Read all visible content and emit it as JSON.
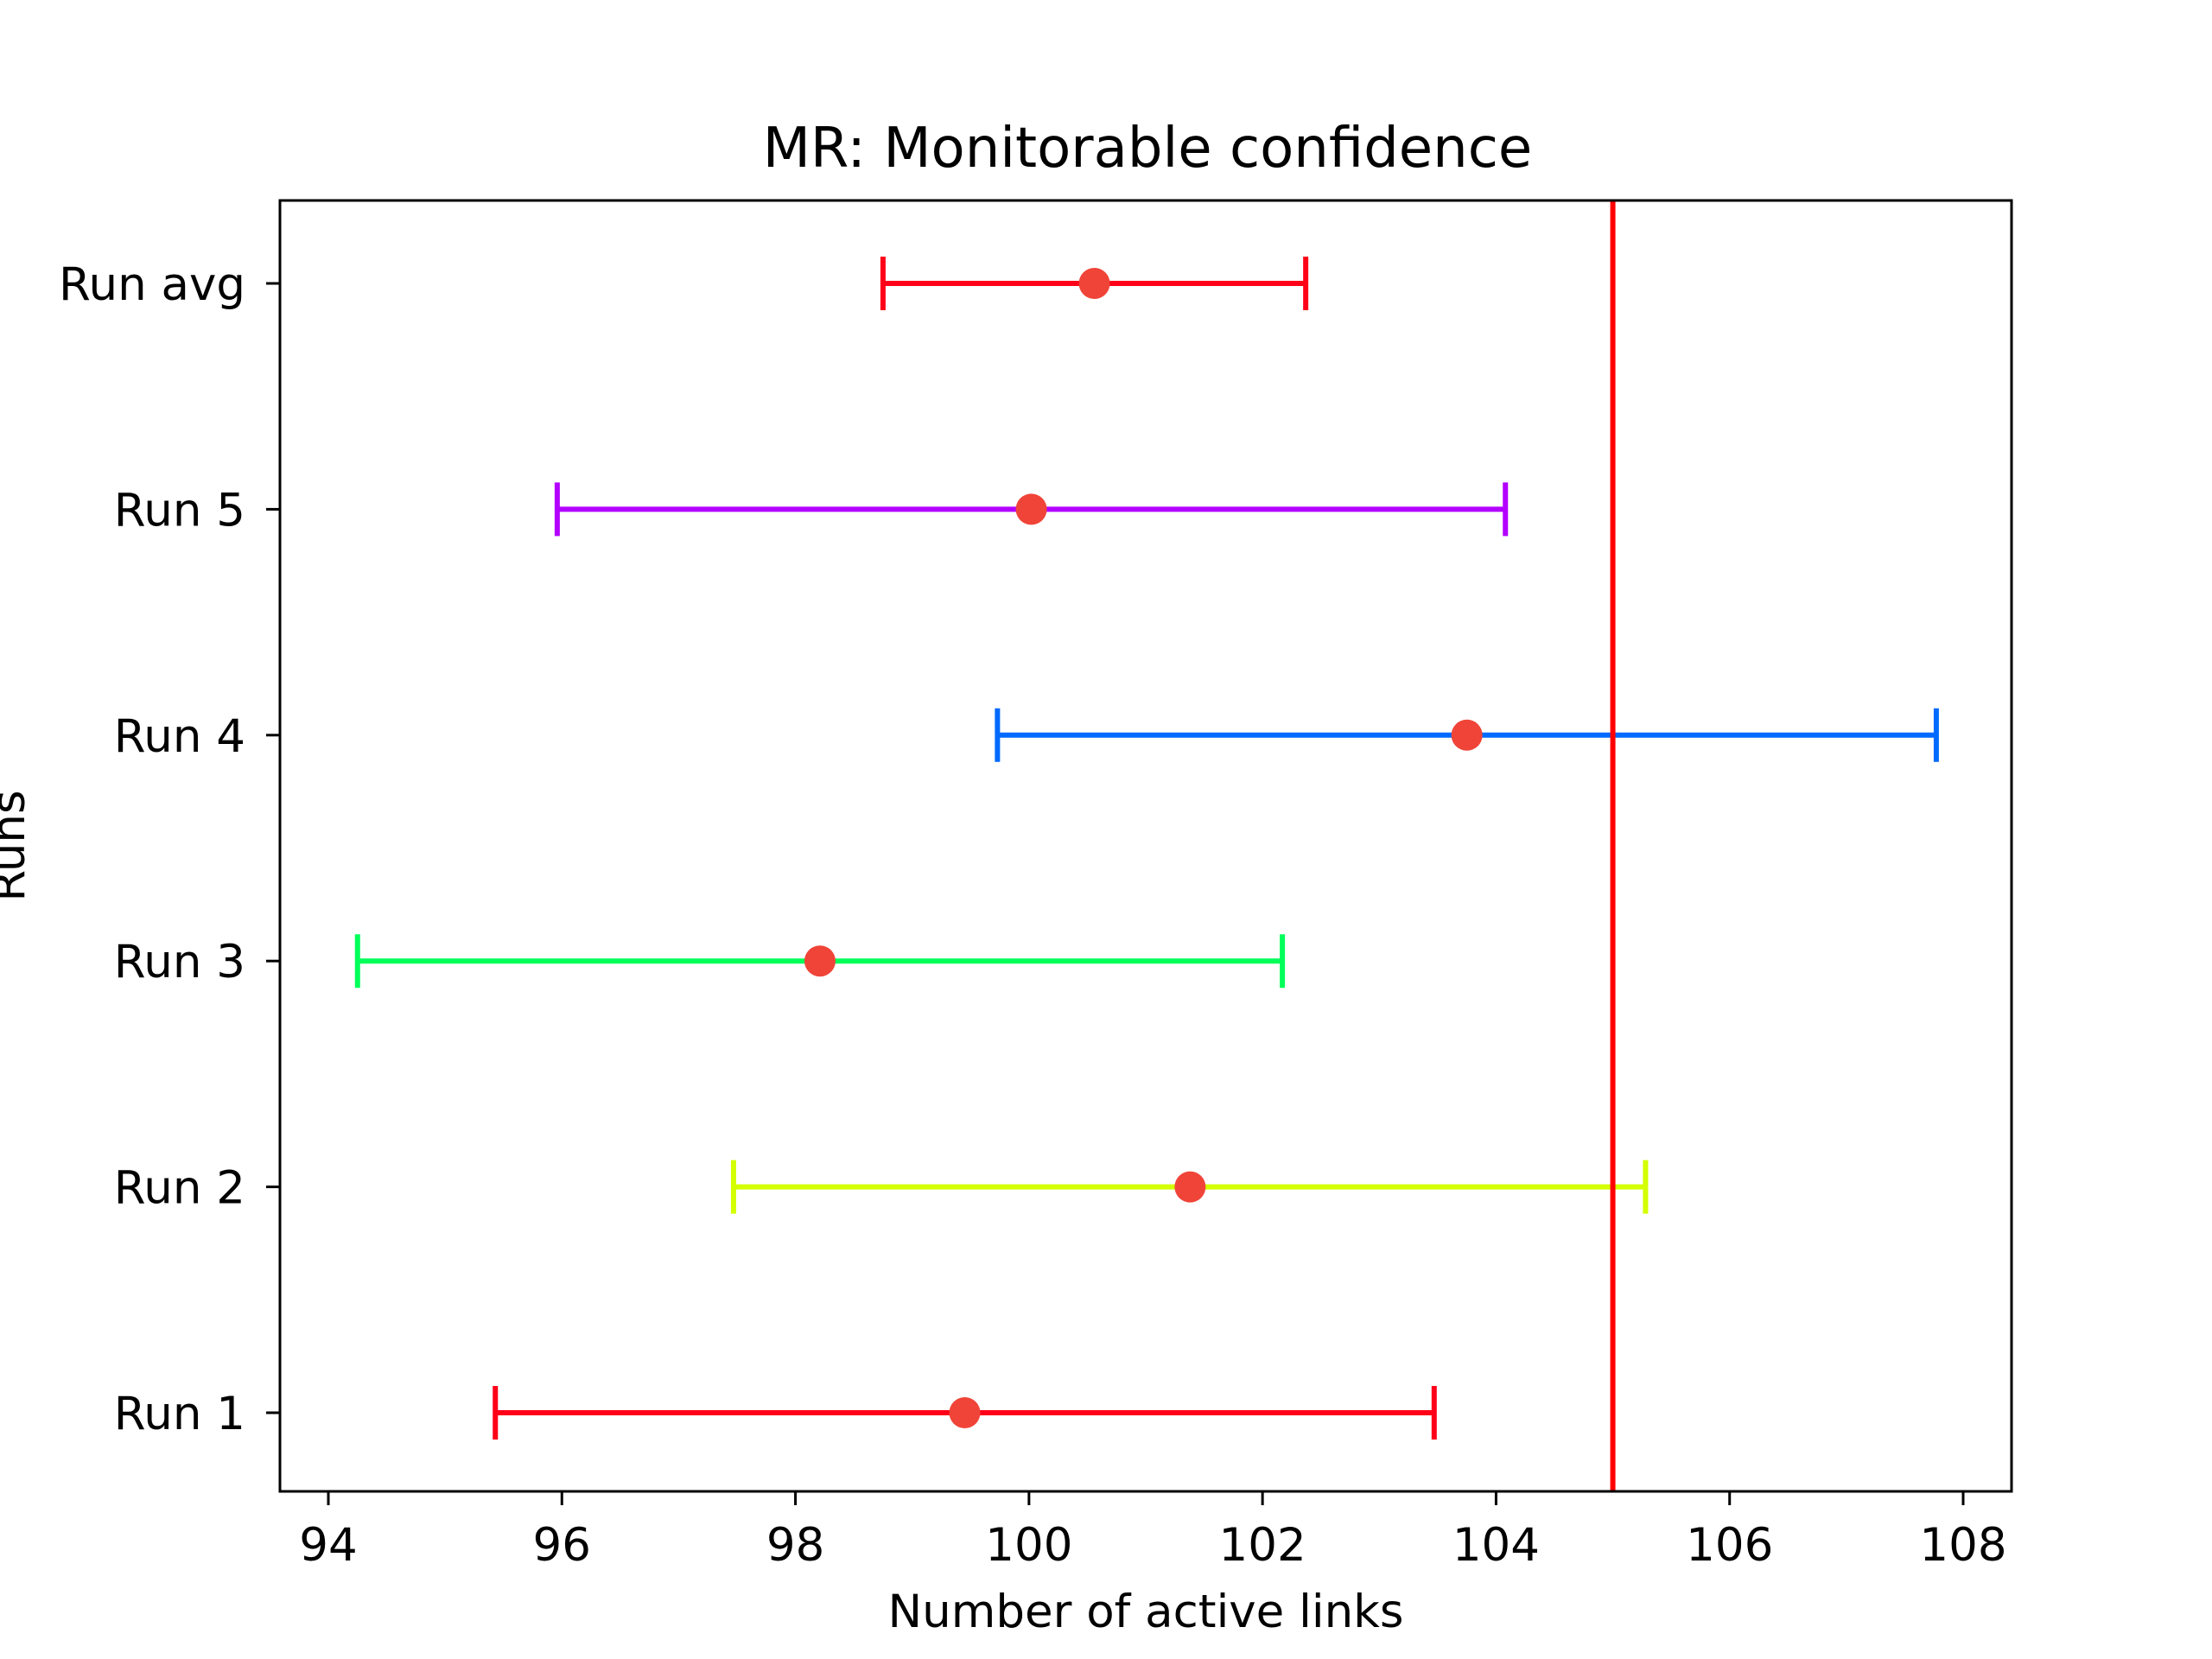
{
  "chart_data": {
    "type": "errorbar",
    "orientation": "horizontal",
    "title": "MR: Monitorable confidence",
    "xlabel": "Number of active links",
    "ylabel": "Runs",
    "xlim": [
      93.6,
      108.4
    ],
    "xticks": [
      "94",
      "96",
      "98",
      "100",
      "102",
      "104",
      "106",
      "108"
    ],
    "grid": false,
    "legend": "none",
    "marker_color": "#f04438",
    "series": [
      {
        "category": "Run 1",
        "mean": 99.45,
        "lower": 95.43,
        "upper": 103.47,
        "color": "#ff0019"
      },
      {
        "category": "Run 2",
        "mean": 101.38,
        "lower": 97.47,
        "upper": 105.28,
        "color": "#d4ff00"
      },
      {
        "category": "Run 3",
        "mean": 98.21,
        "lower": 94.25,
        "upper": 102.17,
        "color": "#00ff59"
      },
      {
        "category": "Run 4",
        "mean": 103.75,
        "lower": 99.73,
        "upper": 107.77,
        "color": "#006aff"
      },
      {
        "category": "Run 5",
        "mean": 100.02,
        "lower": 95.96,
        "upper": 104.08,
        "color": "#b300ff"
      },
      {
        "category": "Run avg",
        "mean": 100.56,
        "lower": 98.75,
        "upper": 102.37,
        "color": "#ff0019"
      }
    ],
    "reference_line": {
      "x": 105.0,
      "color": "#ff0000"
    }
  }
}
